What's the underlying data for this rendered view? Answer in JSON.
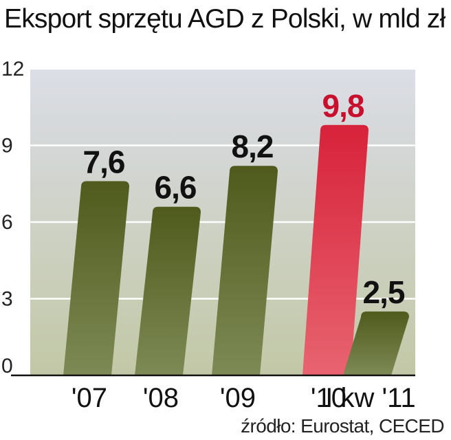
{
  "title": "Eksport sprzętu AGD z Polski, w mld zł",
  "source": "źródło: Eurostat, CECED",
  "colors": {
    "bar": "#5b6524",
    "highlight": "#da2a3f",
    "highlight_label": "#c8102e",
    "label": "#111111",
    "axis": "#111111",
    "grid": "#ffffff",
    "plot_bg_top": "#dcdee7",
    "plot_bg_bottom": "#c2c8a6"
  },
  "chart_data": {
    "type": "bar",
    "title": "Eksport sprzętu AGD z Polski, w mld zł",
    "categories": [
      "'07",
      "'08",
      "'09",
      "'10",
      "I kw '11"
    ],
    "values": [
      7.6,
      6.6,
      8.2,
      9.8,
      2.5
    ],
    "value_labels": [
      "7,6",
      "6,6",
      "8,2",
      "9,8",
      "2,5"
    ],
    "highlight_index": 3,
    "ylim": [
      0,
      12
    ],
    "yticks": [
      0,
      3,
      6,
      9,
      12
    ],
    "ytick_labels": [
      "0",
      "3",
      "6",
      "9",
      "12"
    ],
    "grid": true,
    "legend": "none"
  }
}
